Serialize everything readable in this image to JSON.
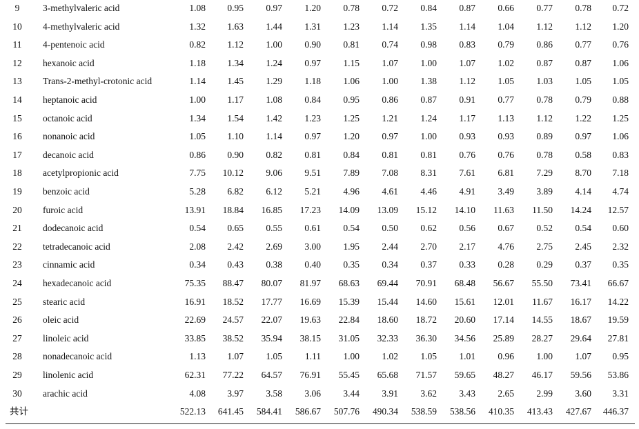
{
  "rows": [
    {
      "no": "9",
      "name": "3-methylvaleric acid",
      "values": [
        "1.08",
        "0.95",
        "0.97",
        "1.20",
        "0.78",
        "0.72",
        "0.84",
        "0.87",
        "0.66",
        "0.77",
        "0.78",
        "0.72"
      ]
    },
    {
      "no": "10",
      "name": "4-methylvaleric acid",
      "values": [
        "1.32",
        "1.63",
        "1.44",
        "1.31",
        "1.23",
        "1.14",
        "1.35",
        "1.14",
        "1.04",
        "1.12",
        "1.12",
        "1.20"
      ]
    },
    {
      "no": "11",
      "name": "4-pentenoic acid",
      "values": [
        "0.82",
        "1.12",
        "1.00",
        "0.90",
        "0.81",
        "0.74",
        "0.98",
        "0.83",
        "0.79",
        "0.86",
        "0.77",
        "0.76"
      ]
    },
    {
      "no": "12",
      "name": "hexanoic acid",
      "values": [
        "1.18",
        "1.34",
        "1.24",
        "0.97",
        "1.15",
        "1.07",
        "1.00",
        "1.07",
        "1.02",
        "0.87",
        "0.87",
        "1.06"
      ]
    },
    {
      "no": "13",
      "name": "Trans-2-methyl-crotonic acid",
      "values": [
        "1.14",
        "1.45",
        "1.29",
        "1.18",
        "1.06",
        "1.00",
        "1.38",
        "1.12",
        "1.05",
        "1.03",
        "1.05",
        "1.05"
      ]
    },
    {
      "no": "14",
      "name": "heptanoic acid",
      "values": [
        "1.00",
        "1.17",
        "1.08",
        "0.84",
        "0.95",
        "0.86",
        "0.87",
        "0.91",
        "0.77",
        "0.78",
        "0.79",
        "0.88"
      ]
    },
    {
      "no": "15",
      "name": "octanoic acid",
      "values": [
        "1.34",
        "1.54",
        "1.42",
        "1.23",
        "1.25",
        "1.21",
        "1.24",
        "1.17",
        "1.13",
        "1.12",
        "1.22",
        "1.25"
      ]
    },
    {
      "no": "16",
      "name": "nonanoic acid",
      "values": [
        "1.05",
        "1.10",
        "1.14",
        "0.97",
        "1.20",
        "0.97",
        "1.00",
        "0.93",
        "0.93",
        "0.89",
        "0.97",
        "1.06"
      ]
    },
    {
      "no": "17",
      "name": "decanoic acid",
      "values": [
        "0.86",
        "0.90",
        "0.82",
        "0.81",
        "0.84",
        "0.81",
        "0.81",
        "0.76",
        "0.76",
        "0.78",
        "0.58",
        "0.83"
      ]
    },
    {
      "no": "18",
      "name": "acetylpropionic acid",
      "values": [
        "7.75",
        "10.12",
        "9.06",
        "9.51",
        "7.89",
        "7.08",
        "8.31",
        "7.61",
        "6.81",
        "7.29",
        "8.70",
        "7.18"
      ]
    },
    {
      "no": "19",
      "name": "benzoic acid",
      "values": [
        "5.28",
        "6.82",
        "6.12",
        "5.21",
        "4.96",
        "4.61",
        "4.46",
        "4.91",
        "3.49",
        "3.89",
        "4.14",
        "4.74"
      ]
    },
    {
      "no": "20",
      "name": "furoic acid",
      "values": [
        "13.91",
        "18.84",
        "16.85",
        "17.23",
        "14.09",
        "13.09",
        "15.12",
        "14.10",
        "11.63",
        "11.50",
        "14.24",
        "12.57"
      ]
    },
    {
      "no": "21",
      "name": "dodecanoic acid",
      "values": [
        "0.54",
        "0.65",
        "0.55",
        "0.61",
        "0.54",
        "0.50",
        "0.62",
        "0.56",
        "0.67",
        "0.52",
        "0.54",
        "0.60"
      ]
    },
    {
      "no": "22",
      "name": "tetradecanoic acid",
      "values": [
        "2.08",
        "2.42",
        "2.69",
        "3.00",
        "1.95",
        "2.44",
        "2.70",
        "2.17",
        "4.76",
        "2.75",
        "2.45",
        "2.32"
      ]
    },
    {
      "no": "23",
      "name": "cinnamic acid",
      "values": [
        "0.34",
        "0.43",
        "0.38",
        "0.40",
        "0.35",
        "0.34",
        "0.37",
        "0.33",
        "0.28",
        "0.29",
        "0.37",
        "0.35"
      ]
    },
    {
      "no": "24",
      "name": "hexadecanoic acid",
      "values": [
        "75.35",
        "88.47",
        "80.07",
        "81.97",
        "68.63",
        "69.44",
        "70.91",
        "68.48",
        "56.67",
        "55.50",
        "73.41",
        "66.67"
      ]
    },
    {
      "no": "25",
      "name": "stearic acid",
      "values": [
        "16.91",
        "18.52",
        "17.77",
        "16.69",
        "15.39",
        "15.44",
        "14.60",
        "15.61",
        "12.01",
        "11.67",
        "16.17",
        "14.22"
      ]
    },
    {
      "no": "26",
      "name": "oleic acid",
      "values": [
        "22.69",
        "24.57",
        "22.07",
        "19.63",
        "22.84",
        "18.60",
        "18.72",
        "20.60",
        "17.14",
        "14.55",
        "18.67",
        "19.59"
      ]
    },
    {
      "no": "27",
      "name": "linoleic acid",
      "values": [
        "33.85",
        "38.52",
        "35.94",
        "38.15",
        "31.05",
        "32.33",
        "36.30",
        "34.56",
        "25.89",
        "28.27",
        "29.64",
        "27.81"
      ]
    },
    {
      "no": "28",
      "name": "nonadecanoic acid",
      "values": [
        "1.13",
        "1.07",
        "1.05",
        "1.11",
        "1.00",
        "1.02",
        "1.05",
        "1.01",
        "0.96",
        "1.00",
        "1.07",
        "0.95"
      ]
    },
    {
      "no": "29",
      "name": "linolenic acid",
      "values": [
        "62.31",
        "77.22",
        "64.57",
        "76.91",
        "55.45",
        "65.68",
        "71.57",
        "59.65",
        "48.27",
        "46.17",
        "59.56",
        "53.86"
      ]
    },
    {
      "no": "30",
      "name": "arachic acid",
      "values": [
        "4.08",
        "3.97",
        "3.58",
        "3.06",
        "3.44",
        "3.91",
        "3.62",
        "3.43",
        "2.65",
        "2.99",
        "3.60",
        "3.31"
      ]
    }
  ],
  "total": {
    "label": "共计",
    "values": [
      "522.13",
      "641.45",
      "584.41",
      "586.67",
      "507.76",
      "490.34",
      "538.59",
      "538.56",
      "410.35",
      "413.43",
      "427.67",
      "446.37"
    ]
  }
}
